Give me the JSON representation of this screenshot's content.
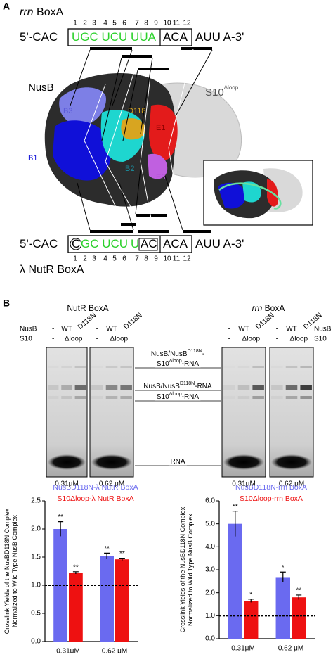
{
  "panel_a": {
    "label": "A",
    "top_title_italic": "rrn",
    "top_title": "BoxA",
    "top_numbers": [
      1,
      2,
      3,
      4,
      5,
      6,
      7,
      8,
      9,
      10,
      11,
      12
    ],
    "top_sequence": {
      "prefix": "5'-CAC",
      "green": "UGC UCU UUA",
      "boxed": "ACA",
      "suffix": "AUU A-3'"
    },
    "structure_labels": {
      "nusb": "NusB",
      "s10": "S10",
      "s10_sup": "Δloop",
      "b3": "B3",
      "d118": "D118",
      "e1": "E1",
      "b1": "B1",
      "b2": "B2",
      "e3": "E3"
    },
    "bottom_sequence": {
      "prefix": "5'-CAC",
      "circled": "C",
      "green": "GC UCU",
      "green_u": "U",
      "ac": "AC",
      "boxed": "ACA",
      "suffix": "AUU A-3'"
    },
    "bottom_numbers": [
      1,
      2,
      3,
      4,
      5,
      6,
      7,
      8,
      9,
      10,
      11,
      12
    ],
    "bottom_title": "λ NutR BoxA"
  },
  "panel_b": {
    "label": "B",
    "gel_title_left": "NutR BoxA",
    "gel_title_right_italic": "rrn",
    "gel_title_right": "BoxA",
    "row_nusb": "NusB",
    "row_s10": "S10",
    "lanes_nusb": [
      "-",
      "WT",
      "D118N"
    ],
    "lanes_s10": [
      "-",
      "Δloop"
    ],
    "concentrations": [
      "0.31μM",
      "0.62 μM",
      "0.31μM",
      "0.62 μM"
    ],
    "band_labels": [
      [
        [
          "NusB/NusB",
          "D118N",
          "-"
        ],
        [
          "S10",
          "Δloop",
          "-RNA"
        ]
      ],
      [
        [
          "NusB/NusB",
          "D118N",
          "-RNA"
        ]
      ],
      [
        [
          "S10",
          "Δloop",
          "-RNA"
        ]
      ],
      [
        [
          "RNA"
        ]
      ]
    ]
  },
  "chart_data": [
    {
      "type": "bar",
      "y_label": [
        "Crosslink Yields of the NusBD118N Complex",
        "Normalized to Wild Type NusB Complex"
      ],
      "categories": [
        "0.31μM",
        "0.62 μM"
      ],
      "series": [
        {
          "name": "NusBD118N-λ NutR BoxA",
          "color": "#6a6af0",
          "values": [
            2.0,
            1.52
          ],
          "errors": [
            0.13,
            0.05
          ],
          "significance": [
            "**",
            "**"
          ]
        },
        {
          "name": "S10Δloop-λ NutR BoxA",
          "color": "#ee1111",
          "values": [
            1.22,
            1.46
          ],
          "errors": [
            0.02,
            0.02
          ],
          "significance": [
            "**",
            "**"
          ]
        }
      ],
      "ylim": [
        0,
        2.5
      ],
      "yticks": [
        {
          "value": 0,
          "label": "0.0"
        },
        0.5,
        {
          "value": 1,
          "label": "1.0"
        },
        1.5,
        {
          "value": 2,
          "label": "2.0"
        },
        2.5
      ],
      "reference_line": 1
    },
    {
      "type": "bar",
      "y_label": [
        "Crosslink Yields of the NusBD118N Complex",
        "Normalized to Wild Type NusB Complex"
      ],
      "categories": [
        "0.31μM",
        "0.62 μM"
      ],
      "series": [
        {
          "name": "NusBD118N-rrn BoxA",
          "color": "#6a6af0",
          "values": [
            5.0,
            2.68
          ],
          "errors": [
            0.55,
            0.22
          ],
          "significance": [
            "**",
            "*"
          ]
        },
        {
          "name": "S10Δloop-rrn BoxA",
          "color": "#ee1111",
          "values": [
            1.65,
            1.8
          ],
          "errors": [
            0.07,
            0.1
          ],
          "significance": [
            "*",
            "**"
          ]
        }
      ],
      "ylim": [
        0,
        6
      ],
      "yticks": [
        {
          "value": 0,
          "label": "0.0"
        },
        {
          "value": 1,
          "label": "1.0"
        },
        {
          "value": 2,
          "label": "2.0"
        },
        {
          "value": 3,
          "label": "3.0"
        },
        {
          "value": 4,
          "label": "4.0"
        },
        {
          "value": 5,
          "label": "5.0"
        },
        {
          "value": 6,
          "label": "6.0"
        }
      ],
      "reference_line": 1
    }
  ]
}
